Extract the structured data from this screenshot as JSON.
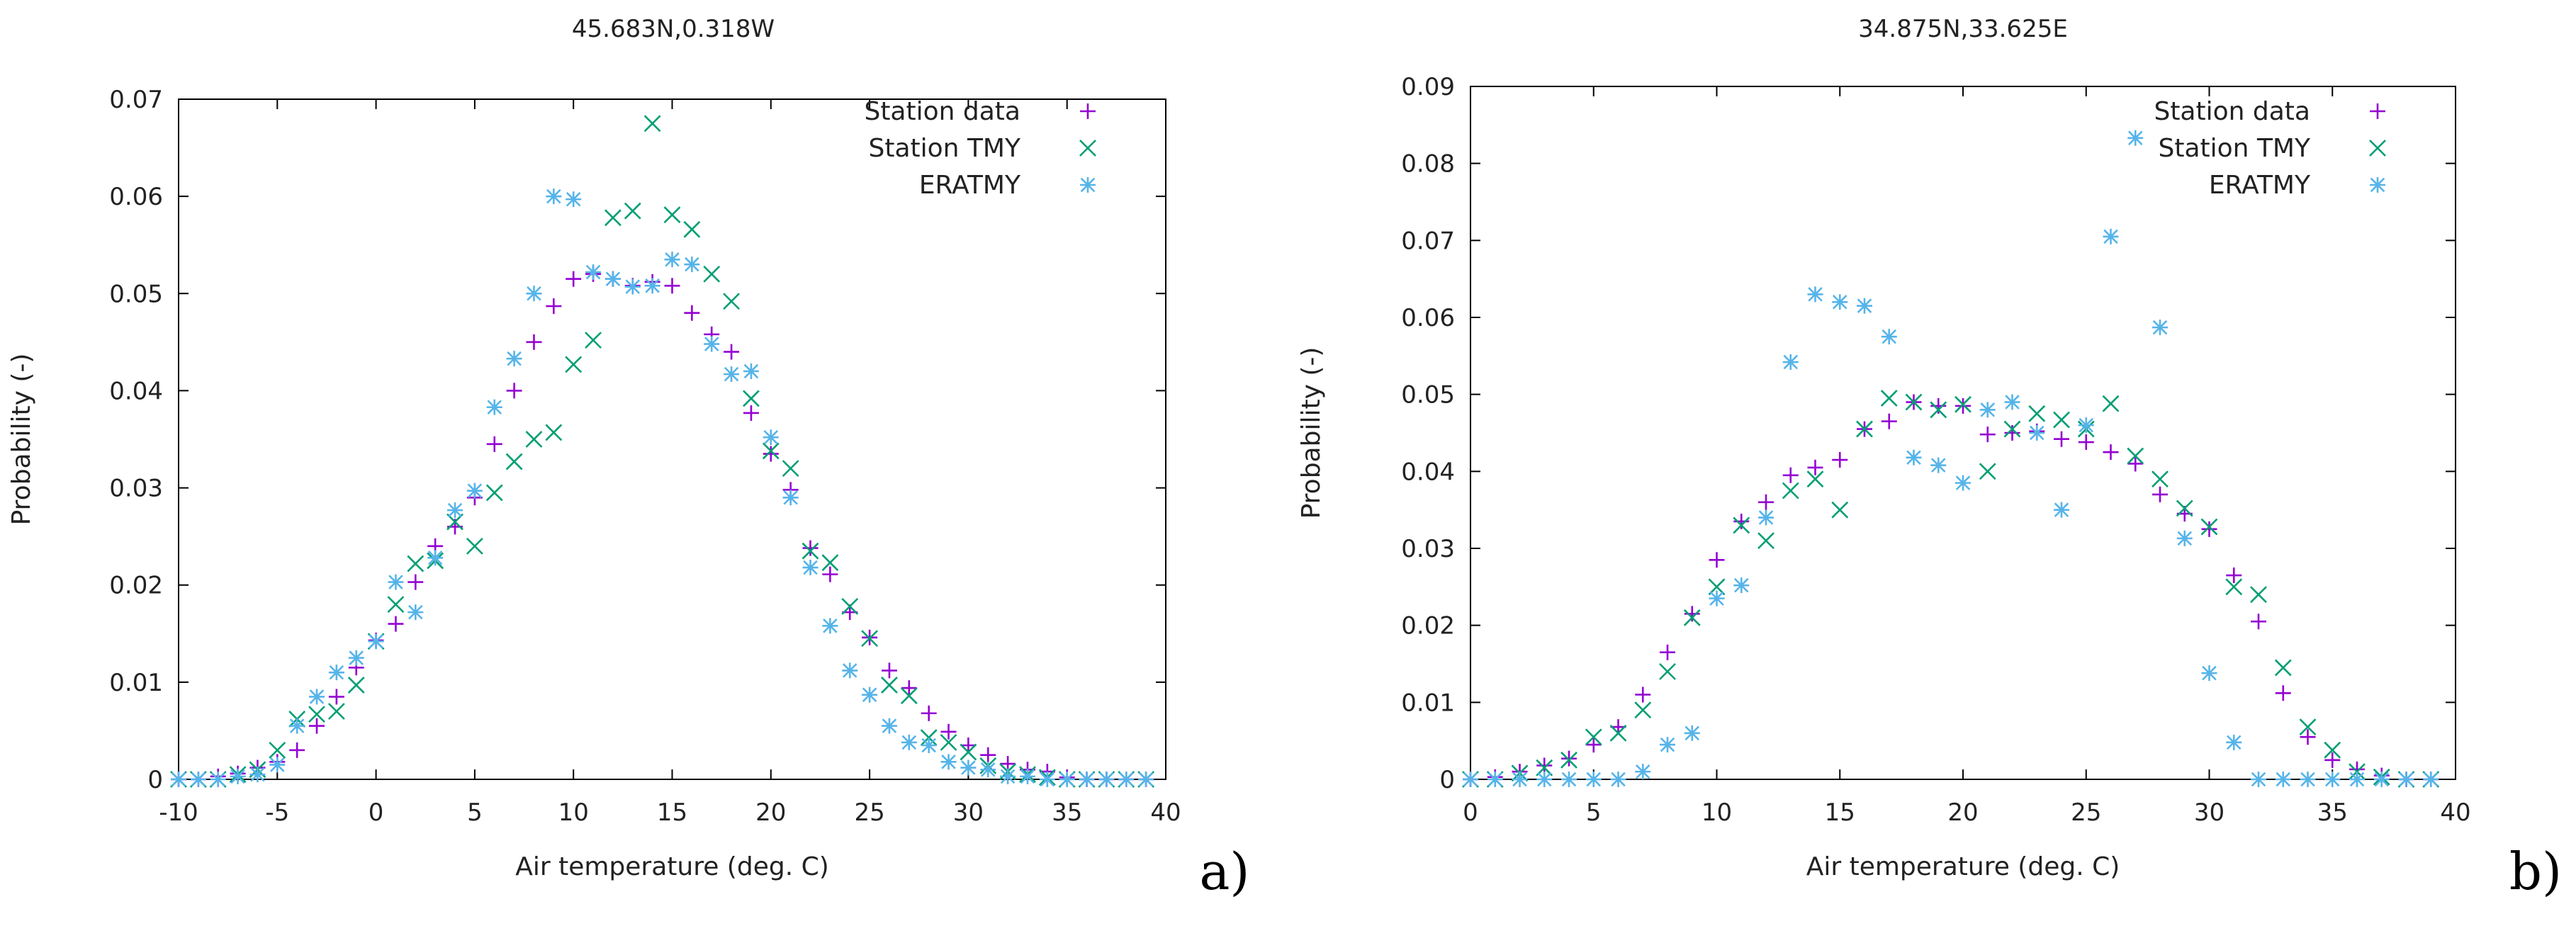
{
  "colors": {
    "station_data": "#9400d3",
    "station_tmy": "#009e73",
    "eratmy": "#56b4e9"
  },
  "chart_data": [
    {
      "type": "scatter",
      "panel_label": "a)",
      "title": "45.683N,0.318W",
      "xlabel": "Air temperature (deg. C)",
      "ylabel": "Probability (-)",
      "xlim": [
        -10,
        40
      ],
      "ylim": [
        0,
        0.07
      ],
      "xticks": [
        -10,
        -5,
        0,
        5,
        10,
        15,
        20,
        25,
        30,
        35,
        40
      ],
      "yticks": [
        0,
        0.01,
        0.02,
        0.03,
        0.04,
        0.05,
        0.06,
        0.07
      ],
      "ytick_labels": [
        "0",
        "0.01",
        "0.02",
        "0.03",
        "0.04",
        "0.05",
        "0.06",
        "0.07"
      ],
      "legend_position": "top-right",
      "series": [
        {
          "name": "Station data",
          "marker": "plus",
          "color": "#9400d3",
          "x": [
            -10,
            -9,
            -8,
            -7,
            -6,
            -5,
            -4,
            -3,
            -2,
            -1,
            0,
            1,
            2,
            3,
            4,
            5,
            6,
            7,
            8,
            9,
            10,
            11,
            12,
            13,
            14,
            15,
            16,
            17,
            18,
            19,
            20,
            21,
            22,
            23,
            24,
            25,
            26,
            27,
            28,
            29,
            30,
            31,
            32,
            33,
            34,
            35,
            36,
            37,
            38,
            39
          ],
          "y": [
            0,
            0,
            0.0003,
            0.0006,
            0.0012,
            0.0018,
            0.003,
            0.0055,
            0.0085,
            0.0115,
            0.0143,
            0.016,
            0.0203,
            0.024,
            0.026,
            0.029,
            0.0345,
            0.04,
            0.045,
            0.0487,
            0.0515,
            0.052,
            0.0515,
            0.0508,
            0.0512,
            0.0508,
            0.048,
            0.0458,
            0.044,
            0.0377,
            0.0335,
            0.0298,
            0.0238,
            0.0211,
            0.0172,
            0.0146,
            0.0112,
            0.0094,
            0.0068,
            0.0049,
            0.0035,
            0.0025,
            0.0016,
            0.001,
            0.0008,
            0.0002,
            0,
            0,
            0,
            0
          ]
        },
        {
          "name": "Station TMY",
          "marker": "x",
          "color": "#009e73",
          "x": [
            -10,
            -9,
            -8,
            -7,
            -6,
            -5,
            -4,
            -3,
            -2,
            -1,
            0,
            1,
            2,
            3,
            4,
            5,
            6,
            7,
            8,
            9,
            10,
            11,
            12,
            13,
            14,
            15,
            16,
            17,
            18,
            19,
            20,
            21,
            22,
            23,
            24,
            25,
            26,
            27,
            28,
            29,
            30,
            31,
            32,
            33,
            34,
            35,
            36,
            37,
            38,
            39
          ],
          "y": [
            0,
            0,
            0,
            0.0005,
            0.001,
            0.003,
            0.0062,
            0.0067,
            0.007,
            0.0097,
            0.0142,
            0.018,
            0.0222,
            0.0225,
            0.0265,
            0.024,
            0.0295,
            0.0327,
            0.035,
            0.0357,
            0.0427,
            0.0452,
            0.0578,
            0.0585,
            0.0675,
            0.0581,
            0.0566,
            0.052,
            0.0492,
            0.0392,
            0.0338,
            0.032,
            0.0235,
            0.0223,
            0.0178,
            0.0145,
            0.0097,
            0.0086,
            0.0043,
            0.0038,
            0.0028,
            0.0014,
            0.0008,
            0.0005,
            0.0002,
            0,
            0,
            0,
            0,
            0
          ]
        },
        {
          "name": "ERATMY",
          "marker": "asterisk",
          "color": "#56b4e9",
          "x": [
            -10,
            -9,
            -8,
            -7,
            -6,
            -5,
            -4,
            -3,
            -2,
            -1,
            0,
            1,
            2,
            3,
            4,
            5,
            6,
            7,
            8,
            9,
            10,
            11,
            12,
            13,
            14,
            15,
            16,
            17,
            18,
            19,
            20,
            21,
            22,
            23,
            24,
            25,
            26,
            27,
            28,
            29,
            30,
            31,
            32,
            33,
            34,
            35,
            36,
            37,
            38,
            39
          ],
          "y": [
            0,
            0,
            0,
            0.0003,
            0.0005,
            0.0015,
            0.0055,
            0.0085,
            0.011,
            0.0125,
            0.0142,
            0.0203,
            0.0172,
            0.0228,
            0.0277,
            0.0297,
            0.0383,
            0.0433,
            0.05,
            0.06,
            0.0597,
            0.0522,
            0.0515,
            0.0507,
            0.0508,
            0.0535,
            0.053,
            0.0448,
            0.0417,
            0.042,
            0.0352,
            0.029,
            0.0218,
            0.0158,
            0.0112,
            0.0087,
            0.0055,
            0.0038,
            0.0035,
            0.0018,
            0.0012,
            0.001,
            0.0003,
            0.0003,
            0,
            0,
            0,
            0,
            0,
            0
          ]
        }
      ]
    },
    {
      "type": "scatter",
      "panel_label": "b)",
      "title": "34.875N,33.625E",
      "xlabel": "Air temperature (deg. C)",
      "ylabel": "Probability (-)",
      "xlim": [
        0,
        40
      ],
      "ylim": [
        0,
        0.09
      ],
      "xticks": [
        0,
        5,
        10,
        15,
        20,
        25,
        30,
        35,
        40
      ],
      "yticks": [
        0,
        0.01,
        0.02,
        0.03,
        0.04,
        0.05,
        0.06,
        0.07,
        0.08,
        0.09
      ],
      "ytick_labels": [
        "0",
        "0.01",
        "0.02",
        "0.03",
        "0.04",
        "0.05",
        "0.06",
        "0.07",
        "0.08",
        "0.09"
      ],
      "legend_position": "top-right",
      "series": [
        {
          "name": "Station data",
          "marker": "plus",
          "color": "#9400d3",
          "x": [
            0,
            1,
            2,
            3,
            4,
            5,
            6,
            7,
            8,
            9,
            10,
            11,
            12,
            13,
            14,
            15,
            16,
            17,
            18,
            19,
            20,
            21,
            22,
            23,
            24,
            25,
            26,
            27,
            28,
            29,
            30,
            31,
            32,
            33,
            34,
            35,
            36,
            37,
            38,
            39
          ],
          "y": [
            0,
            0.0003,
            0.001,
            0.0018,
            0.0027,
            0.0045,
            0.0068,
            0.011,
            0.0165,
            0.0215,
            0.0285,
            0.0335,
            0.036,
            0.0395,
            0.0405,
            0.0415,
            0.0455,
            0.0465,
            0.049,
            0.0485,
            0.0485,
            0.0448,
            0.045,
            0.0452,
            0.0442,
            0.0438,
            0.0425,
            0.041,
            0.037,
            0.0345,
            0.0325,
            0.0265,
            0.0205,
            0.0112,
            0.0055,
            0.0025,
            0.0013,
            0.0005,
            0,
            0
          ]
        },
        {
          "name": "Station TMY",
          "marker": "x",
          "color": "#009e73",
          "x": [
            0,
            1,
            2,
            3,
            4,
            5,
            6,
            7,
            8,
            9,
            10,
            11,
            12,
            13,
            14,
            15,
            16,
            17,
            18,
            19,
            20,
            21,
            22,
            23,
            24,
            25,
            26,
            27,
            28,
            29,
            30,
            31,
            32,
            33,
            34,
            35,
            36,
            37,
            38,
            39
          ],
          "y": [
            0,
            0,
            0.0008,
            0.0015,
            0.0025,
            0.0055,
            0.006,
            0.009,
            0.014,
            0.021,
            0.025,
            0.033,
            0.031,
            0.0375,
            0.039,
            0.035,
            0.0455,
            0.0495,
            0.049,
            0.048,
            0.0487,
            0.04,
            0.0455,
            0.0475,
            0.0467,
            0.0455,
            0.0488,
            0.042,
            0.039,
            0.0352,
            0.0328,
            0.025,
            0.024,
            0.0145,
            0.0068,
            0.0038,
            0.001,
            0.0003,
            0,
            0
          ]
        },
        {
          "name": "ERATMY",
          "marker": "asterisk",
          "color": "#56b4e9",
          "x": [
            0,
            1,
            2,
            3,
            4,
            5,
            6,
            7,
            8,
            9,
            10,
            11,
            12,
            13,
            14,
            15,
            16,
            17,
            18,
            19,
            20,
            21,
            22,
            23,
            24,
            25,
            26,
            27,
            28,
            29,
            30,
            31,
            32,
            33,
            34,
            35,
            36,
            37,
            38,
            39
          ],
          "y": [
            0,
            0,
            0,
            0,
            0,
            0,
            0,
            0.001,
            0.0045,
            0.006,
            0.0235,
            0.0252,
            0.034,
            0.0542,
            0.063,
            0.062,
            0.0615,
            0.0575,
            0.0418,
            0.0408,
            0.0385,
            0.048,
            0.049,
            0.045,
            0.035,
            0.046,
            0.0705,
            0.0833,
            0.0587,
            0.0313,
            0.0138,
            0.0048,
            0,
            0,
            0,
            0,
            0,
            0,
            0,
            0
          ]
        }
      ]
    }
  ]
}
